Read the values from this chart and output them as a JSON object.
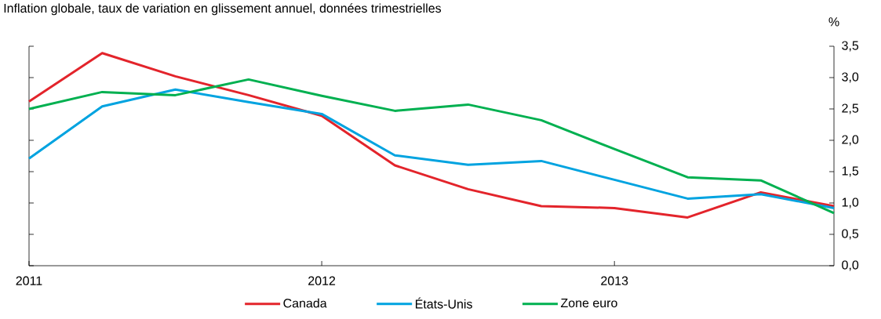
{
  "chart_data": {
    "type": "line",
    "title": "Inflation globale, taux de variation en glissement annuel, données trimestrielles",
    "ylabel": "%",
    "x": [
      2011,
      2011.25,
      2011.5,
      2011.75,
      2012,
      2012.25,
      2012.5,
      2012.75,
      2013,
      2013.25,
      2013.5,
      2013.75
    ],
    "series": [
      {
        "name": "Canada",
        "color": "#e3242b",
        "values": [
          2.62,
          3.39,
          3.02,
          2.72,
          2.39,
          1.6,
          1.22,
          0.95,
          0.92,
          0.77,
          1.17,
          0.95
        ]
      },
      {
        "name": "États-Unis",
        "color": "#00a3e0",
        "values": [
          1.71,
          2.54,
          2.81,
          2.61,
          2.42,
          1.76,
          1.61,
          1.67,
          1.37,
          1.07,
          1.14,
          0.92
        ]
      },
      {
        "name": "Zone euro",
        "color": "#00b050",
        "values": [
          2.5,
          2.77,
          2.72,
          2.97,
          2.71,
          2.47,
          2.57,
          2.32,
          1.86,
          1.41,
          1.36,
          0.84
        ]
      }
    ],
    "xlim": [
      2011,
      2013.75
    ],
    "xticks": [
      2011,
      2012,
      2013
    ],
    "ylim": [
      0,
      3.5
    ],
    "yticks": [
      {
        "value": 0,
        "label": "0,0"
      },
      {
        "value": 0.5,
        "label": "0,5"
      },
      {
        "value": 1,
        "label": "1,0"
      },
      {
        "value": 1.5,
        "label": "1,5"
      },
      {
        "value": 2,
        "label": "2,0"
      },
      {
        "value": 2.5,
        "label": "2,5"
      },
      {
        "value": 3,
        "label": "3,0"
      },
      {
        "value": 3.5,
        "label": "3,5"
      }
    ],
    "legend": "bottom"
  }
}
